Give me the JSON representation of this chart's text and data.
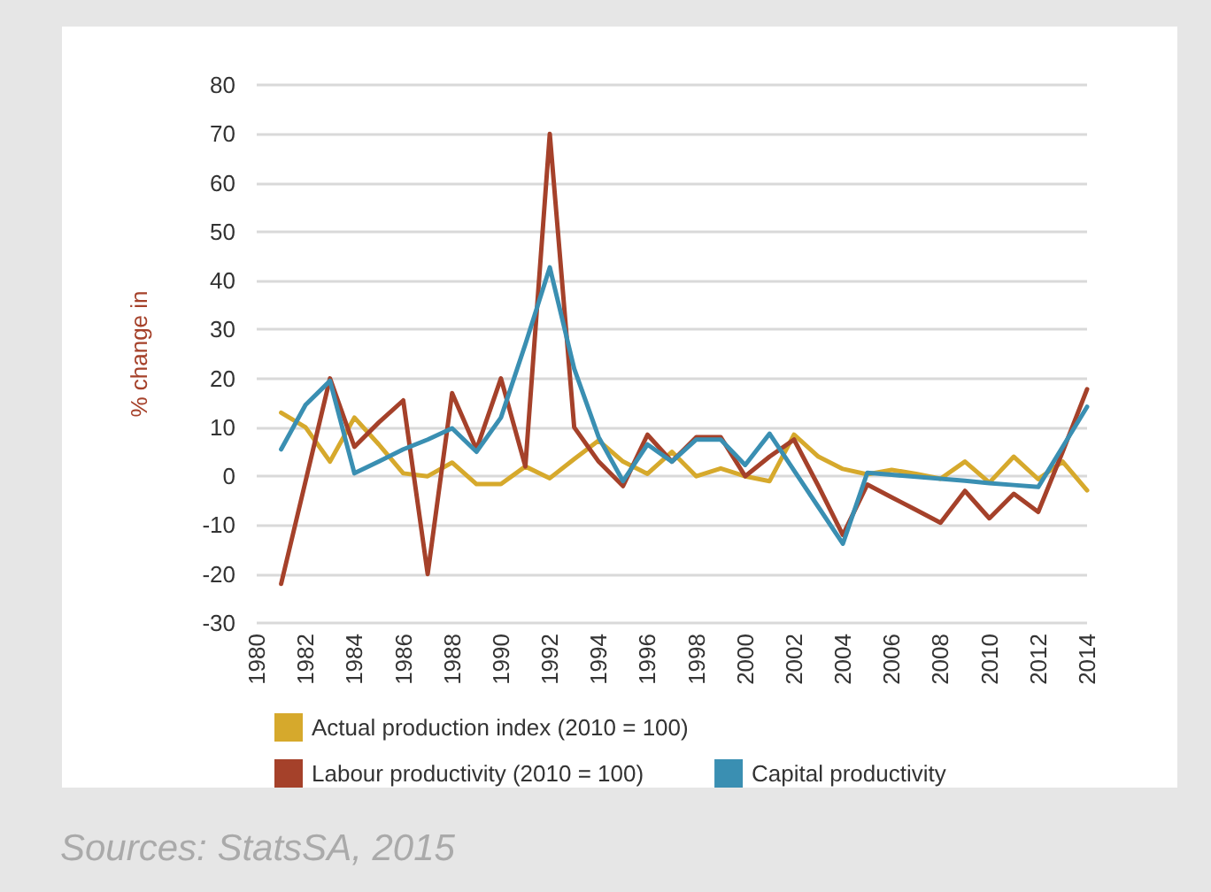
{
  "chart_data": {
    "type": "line",
    "ylabel": "% change in",
    "x": [
      1981,
      1982,
      1983,
      1984,
      1985,
      1986,
      1987,
      1988,
      1989,
      1990,
      1991,
      1992,
      1993,
      1994,
      1995,
      1996,
      1997,
      1998,
      1999,
      2000,
      2001,
      2002,
      2003,
      2004,
      2005,
      2006,
      2007,
      2008,
      2009,
      2010,
      2011,
      2012,
      2013,
      2014
    ],
    "series": [
      {
        "name": "Actual production index (2010 = 100)",
        "color": "#d6a92c",
        "values": [
          13,
          10,
          3,
          12,
          6.5,
          0.6,
          0,
          2.8,
          -1.6,
          -1.6,
          2,
          -0.4,
          3.5,
          7.3,
          3,
          0.5,
          5,
          0,
          1.6,
          0,
          -1,
          8.5,
          4,
          1.5,
          0.4,
          1.3,
          0.5,
          -0.5,
          3,
          -1.3,
          4,
          -0.6,
          3,
          -2.9
        ]
      },
      {
        "name": "Labour productivity (2010 = 100)",
        "color": "#a5412a",
        "values": [
          -22,
          -1,
          20,
          6,
          11,
          15.5,
          -20,
          17,
          5.5,
          20,
          2,
          70,
          10,
          3,
          -2,
          8.5,
          3,
          8,
          8,
          0,
          4,
          7.5,
          -2,
          -12,
          -1.7,
          -4.3,
          -6.9,
          -9.5,
          -3,
          -8.6,
          -3.6,
          -7.3,
          5,
          17.8
        ]
      },
      {
        "name": "Capital productivity",
        "color": "#3a8fb2",
        "values": [
          5.5,
          14.6,
          19.5,
          0.6,
          3,
          5.5,
          7.5,
          9.8,
          5,
          12,
          27,
          42.7,
          22,
          8,
          -1,
          6.5,
          3,
          7.5,
          7.5,
          2.3,
          8.7,
          1.2,
          -6.3,
          -13.8,
          0.7,
          0.3,
          -0.1,
          -0.5,
          -0.9,
          -1.4,
          -1.8,
          -2.2,
          6,
          14.2
        ]
      }
    ],
    "xlim": [
      1980,
      2014
    ],
    "xticks": [
      1980,
      1982,
      1984,
      1986,
      1988,
      1990,
      1992,
      1994,
      1996,
      1998,
      2000,
      2002,
      2004,
      2006,
      2008,
      2010,
      2012,
      2014
    ],
    "ylim": [
      -30,
      80
    ],
    "yticks": [
      -30,
      -20,
      -10,
      0,
      10,
      20,
      30,
      40,
      50,
      60,
      70,
      80
    ],
    "grid": "y",
    "legend": "bottom",
    "marker": "none",
    "line_style": "solid",
    "annotations": [
      "Sources: StatsSA, 2015"
    ]
  }
}
